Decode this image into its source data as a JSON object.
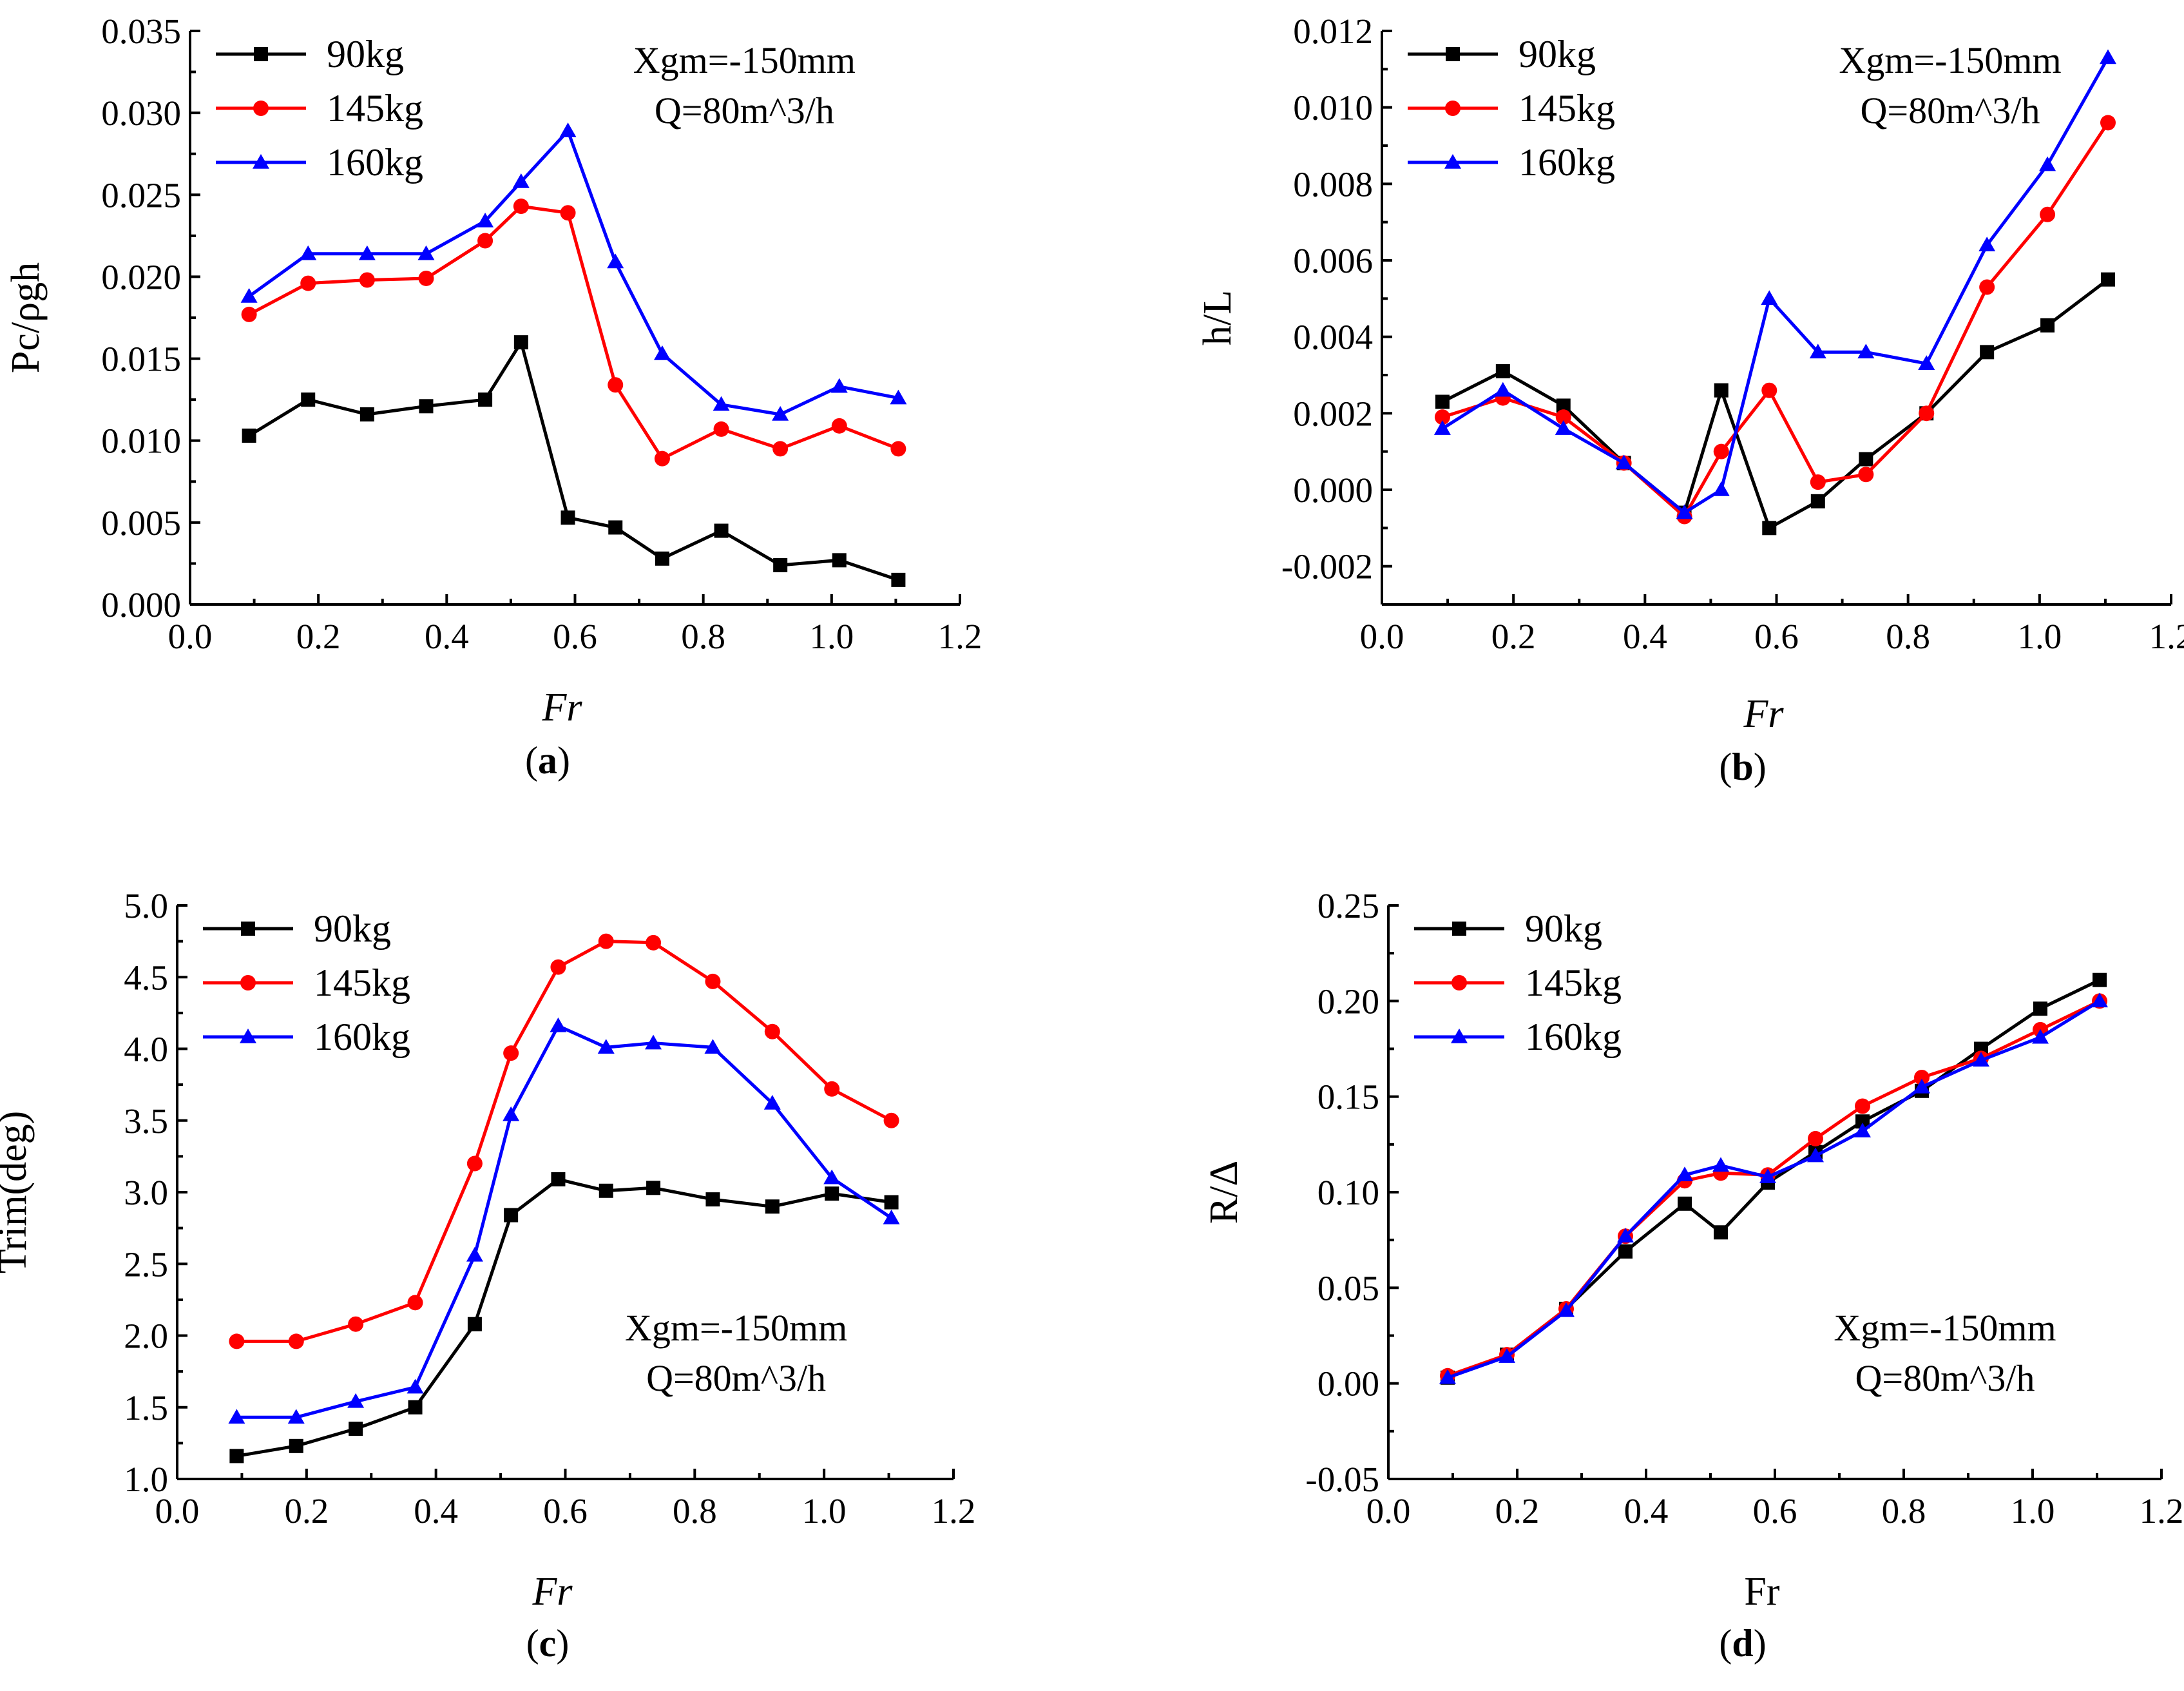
{
  "colors": {
    "s90": "#000000",
    "s145": "#ff0000",
    "s160": "#0000ff"
  },
  "chart_data": [
    {
      "type": "line",
      "panel": "a",
      "caption": {
        "open": "(",
        "letter": "a",
        "close": ")"
      },
      "xlabel": "Fr",
      "xlabel_italic": true,
      "ylabel": "Pc/ρgh",
      "xlim": [
        0.0,
        1.2
      ],
      "ylim": [
        0.0,
        0.035
      ],
      "xticks": [
        "0.0",
        "0.2",
        "0.4",
        "0.6",
        "0.8",
        "1.0",
        "1.2"
      ],
      "yticks": [
        "0.000",
        "0.005",
        "0.010",
        "0.015",
        "0.020",
        "0.025",
        "0.030",
        "0.035"
      ],
      "legend": {
        "position": "top-left"
      },
      "annotations": [
        "Xgm=-150mm",
        "Q=80m^3/h"
      ],
      "annotation_position": "top-right",
      "x": [
        0.092,
        0.184,
        0.276,
        0.368,
        0.46,
        0.516,
        0.589,
        0.663,
        0.736,
        0.828,
        0.92,
        1.012,
        1.104
      ],
      "series": [
        {
          "name": "90kg",
          "color_key": "s90",
          "marker": "square",
          "values": [
            0.0103,
            0.0125,
            0.0116,
            0.0121,
            0.0125,
            0.016,
            0.0053,
            0.0047,
            0.0028,
            0.0045,
            0.0024,
            0.0027,
            0.0015
          ]
        },
        {
          "name": "145kg",
          "color_key": "s145",
          "marker": "circle",
          "values": [
            0.0177,
            0.0196,
            0.0198,
            0.0199,
            0.0222,
            0.0243,
            0.0239,
            0.0134,
            0.0089,
            0.0107,
            0.0095,
            0.0109,
            0.0095
          ]
        },
        {
          "name": "160kg",
          "color_key": "s160",
          "marker": "triangle",
          "values": [
            0.0188,
            0.0214,
            0.0214,
            0.0214,
            0.0234,
            0.0258,
            0.0289,
            0.0209,
            0.0153,
            0.0122,
            0.0116,
            0.0133,
            0.0126
          ]
        }
      ]
    },
    {
      "type": "line",
      "panel": "b",
      "caption": {
        "open": "(",
        "letter": "b",
        "close": ")"
      },
      "xlabel": "Fr",
      "xlabel_italic": true,
      "ylabel": "h/L",
      "xlim": [
        0.0,
        1.2
      ],
      "ylim": [
        -0.003,
        0.012
      ],
      "xticks": [
        "0.0",
        "0.2",
        "0.4",
        "0.6",
        "0.8",
        "1.0",
        "1.2"
      ],
      "yticks": [
        "-0.002",
        "0.000",
        "0.002",
        "0.004",
        "0.006",
        "0.008",
        "0.010",
        "0.012"
      ],
      "ytick_values": [
        -0.002,
        0.0,
        0.002,
        0.004,
        0.006,
        0.008,
        0.01,
        0.012
      ],
      "legend": {
        "position": "top-left"
      },
      "annotations": [
        "Xgm=-150mm",
        "Q=80m^3/h"
      ],
      "annotation_position": "top-right",
      "x": [
        0.092,
        0.184,
        0.276,
        0.368,
        0.46,
        0.516,
        0.589,
        0.663,
        0.736,
        0.828,
        0.92,
        1.012,
        1.104
      ],
      "series": [
        {
          "name": "90kg",
          "color_key": "s90",
          "marker": "square",
          "values": [
            0.0023,
            0.0031,
            0.0022,
            0.0007,
            -0.0006,
            0.0026,
            -0.001,
            -0.0003,
            0.0008,
            0.002,
            0.0036,
            0.0043,
            0.0055
          ]
        },
        {
          "name": "145kg",
          "color_key": "s145",
          "marker": "circle",
          "values": [
            0.0019,
            0.0024,
            0.0019,
            0.0007,
            -0.0007,
            0.001,
            0.0026,
            0.0002,
            0.0004,
            0.002,
            0.0053,
            0.0072,
            0.0096
          ]
        },
        {
          "name": "160kg",
          "color_key": "s160",
          "marker": "triangle",
          "values": [
            0.0016,
            0.0026,
            0.0016,
            0.0007,
            -0.0006,
            0.0,
            0.005,
            0.0036,
            0.0036,
            0.0033,
            0.0064,
            0.0085,
            0.0113
          ]
        }
      ]
    },
    {
      "type": "line",
      "panel": "c",
      "caption": {
        "open": "(",
        "letter": "c",
        "close": ")"
      },
      "xlabel": "Fr",
      "xlabel_italic": true,
      "ylabel": "Trim(deg)",
      "xlim": [
        0.0,
        1.2
      ],
      "ylim": [
        1.0,
        5.0
      ],
      "xticks": [
        "0.0",
        "0.2",
        "0.4",
        "0.6",
        "0.8",
        "1.0",
        "1.2"
      ],
      "yticks": [
        "1.0",
        "1.5",
        "2.0",
        "2.5",
        "3.0",
        "3.5",
        "4.0",
        "4.5",
        "5.0"
      ],
      "legend": {
        "position": "top-left"
      },
      "annotations": [
        "Xgm=-150mm",
        "Q=80m^3/h"
      ],
      "annotation_position": "bottom-right",
      "x": [
        0.092,
        0.184,
        0.276,
        0.368,
        0.46,
        0.516,
        0.589,
        0.663,
        0.736,
        0.828,
        0.92,
        1.012,
        1.104
      ],
      "series": [
        {
          "name": "90kg",
          "color_key": "s90",
          "marker": "square",
          "values": [
            1.16,
            1.23,
            1.35,
            1.5,
            2.08,
            2.84,
            3.09,
            3.01,
            3.03,
            2.95,
            2.9,
            2.99,
            2.93
          ]
        },
        {
          "name": "145kg",
          "color_key": "s145",
          "marker": "circle",
          "values": [
            1.96,
            1.96,
            2.08,
            2.23,
            3.2,
            3.97,
            4.57,
            4.75,
            4.74,
            4.47,
            4.12,
            3.72,
            3.5
          ]
        },
        {
          "name": "160kg",
          "color_key": "s160",
          "marker": "triangle",
          "values": [
            1.43,
            1.43,
            1.54,
            1.64,
            2.56,
            3.54,
            4.16,
            4.01,
            4.04,
            4.01,
            3.62,
            3.1,
            2.82
          ]
        }
      ]
    },
    {
      "type": "line",
      "panel": "d",
      "caption": {
        "open": "(",
        "letter": "d",
        "close": ")"
      },
      "xlabel": "Fr",
      "xlabel_italic": false,
      "ylabel": "R/Δ",
      "xlim": [
        0.0,
        1.2
      ],
      "ylim": [
        -0.05,
        0.25
      ],
      "xticks": [
        "0.0",
        "0.2",
        "0.4",
        "0.6",
        "0.8",
        "1.0",
        "1.2"
      ],
      "yticks": [
        "-0.05",
        "0.00",
        "0.05",
        "0.10",
        "0.15",
        "0.20",
        "0.25"
      ],
      "legend": {
        "position": "top-left"
      },
      "annotations": [
        "Xgm=-150mm",
        "Q=80m^3/h"
      ],
      "annotation_position": "bottom-right",
      "x": [
        0.092,
        0.184,
        0.276,
        0.368,
        0.46,
        0.516,
        0.589,
        0.663,
        0.736,
        0.828,
        0.92,
        1.012,
        1.104
      ],
      "series": [
        {
          "name": "90kg",
          "color_key": "s90",
          "marker": "square",
          "values": [
            0.003,
            0.015,
            0.039,
            0.069,
            0.094,
            0.079,
            0.105,
            0.121,
            0.137,
            0.153,
            0.175,
            0.196,
            0.211
          ]
        },
        {
          "name": "145kg",
          "color_key": "s145",
          "marker": "circle",
          "values": [
            0.004,
            0.015,
            0.039,
            0.077,
            0.106,
            0.11,
            0.109,
            0.128,
            0.145,
            0.16,
            0.17,
            0.185,
            0.2
          ]
        },
        {
          "name": "160kg",
          "color_key": "s160",
          "marker": "triangle",
          "values": [
            0.003,
            0.014,
            0.038,
            0.077,
            0.109,
            0.114,
            0.108,
            0.119,
            0.132,
            0.155,
            0.169,
            0.181,
            0.2
          ]
        }
      ]
    }
  ]
}
